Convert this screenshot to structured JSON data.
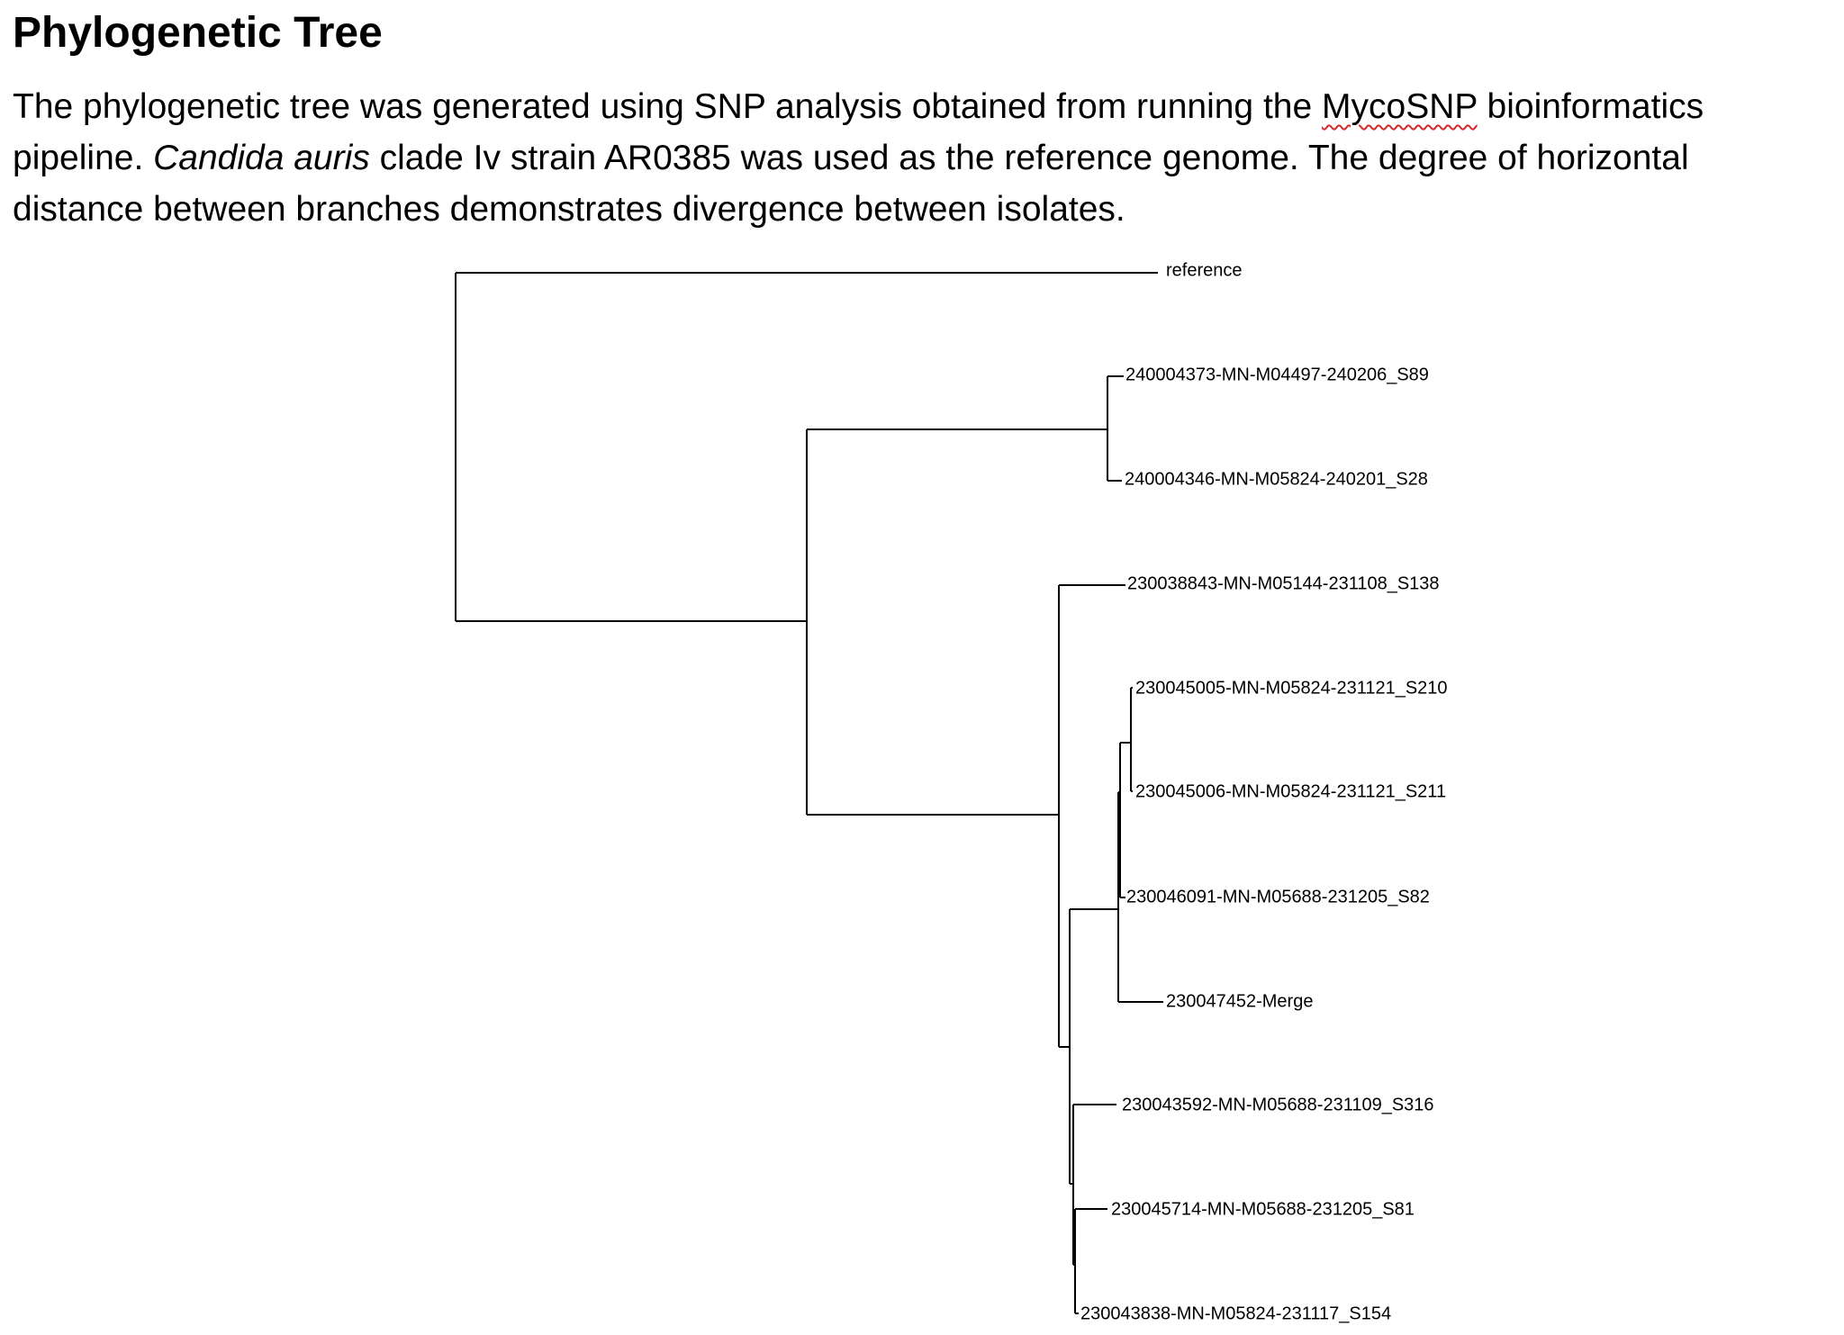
{
  "document": {
    "title": "Phylogenetic Tree",
    "description": {
      "line1_before": "The phylogenetic tree was generated using SNP analysis obtained from running the ",
      "line1_flagged_word": "MycoSNP",
      "line1_after": " bioinformatics",
      "line2_before": "pipeline. ",
      "line2_italic": "Candida auris",
      "line2_after": " clade Iv strain AR0385 was used as the reference genome. The degree of horizontal",
      "line3": "distance between branches demonstrates divergence between isolates."
    },
    "spellcheck_color": "#d42a2a"
  },
  "tree": {
    "tips": [
      "reference",
      "240004373-MN-M04497-240206_S89",
      "240004346-MN-M05824-240201_S28",
      "230038843-MN-M05144-231108_S138",
      "230045005-MN-M05824-231121_S210",
      "230045006-MN-M05824-231121_S211",
      "230046091-MN-M05688-231205_S82",
      "230047452-Merge",
      "230043592-MN-M05688-231109_S316",
      "230045714-MN-M05688-231205_S81",
      "230043838-MN-M05824-231117_S154"
    ],
    "line_color": "#000000"
  }
}
